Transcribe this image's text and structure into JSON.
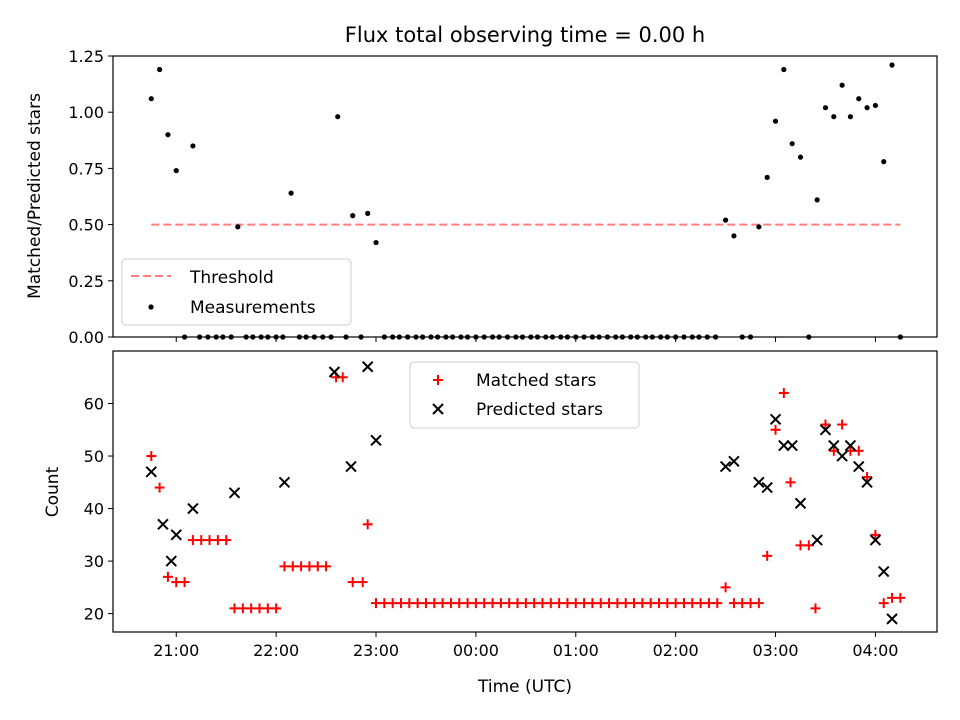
{
  "chart_data": [
    {
      "type": "scatter",
      "title": "Flux total observing time = 0.00 h",
      "xlabel": "",
      "ylabel": "Matched/Predicted stars",
      "x_axis": "time (UTC, hours after 20:00)",
      "xlim": [
        "20:22",
        "04:37"
      ],
      "ylim": [
        0,
        1.25
      ],
      "yticks": [
        "0.00",
        "0.25",
        "0.50",
        "0.75",
        "1.00",
        "1.25"
      ],
      "threshold": {
        "name": "Threshold",
        "y": 0.5,
        "x_from": "20:45",
        "x_to": "04:15",
        "color": "#ff7f7f",
        "style": "dashed"
      },
      "legend": {
        "placement": "lower-left",
        "entries": [
          "Threshold",
          "Measurements"
        ]
      },
      "series": [
        {
          "name": "Measurements",
          "color": "#000000",
          "points": [
            [
              "20:45",
              1.06
            ],
            [
              "20:50",
              1.19
            ],
            [
              "20:55",
              0.9
            ],
            [
              "21:00",
              0.74
            ],
            [
              "21:05",
              0.0
            ],
            [
              "21:10",
              0.85
            ],
            [
              "21:14",
              0.0
            ],
            [
              "21:19",
              0.0
            ],
            [
              "21:24",
              0.0
            ],
            [
              "21:28",
              0.0
            ],
            [
              "21:33",
              0.0
            ],
            [
              "21:37",
              0.49
            ],
            [
              "21:42",
              0.0
            ],
            [
              "21:46",
              0.0
            ],
            [
              "21:51",
              0.0
            ],
            [
              "21:55",
              0.0
            ],
            [
              "22:00",
              0.0
            ],
            [
              "22:04",
              0.0
            ],
            [
              "22:09",
              0.64
            ],
            [
              "22:14",
              0.0
            ],
            [
              "22:18",
              0.0
            ],
            [
              "22:23",
              0.0
            ],
            [
              "22:28",
              0.0
            ],
            [
              "22:33",
              0.0
            ],
            [
              "22:37",
              0.98
            ],
            [
              "22:42",
              0.0
            ],
            [
              "22:46",
              0.54
            ],
            [
              "22:51",
              0.0
            ],
            [
              "22:55",
              0.55
            ],
            [
              "23:00",
              0.42
            ],
            [
              "23:05",
              0.0
            ],
            [
              "23:10",
              0.0
            ],
            [
              "23:14",
              0.0
            ],
            [
              "23:19",
              0.0
            ],
            [
              "23:24",
              0.0
            ],
            [
              "23:28",
              0.0
            ],
            [
              "23:33",
              0.0
            ],
            [
              "23:37",
              0.0
            ],
            [
              "23:42",
              0.0
            ],
            [
              "23:46",
              0.0
            ],
            [
              "23:51",
              0.0
            ],
            [
              "23:55",
              0.0
            ],
            [
              "00:00",
              0.0
            ],
            [
              "00:05",
              0.0
            ],
            [
              "00:10",
              0.0
            ],
            [
              "00:14",
              0.0
            ],
            [
              "00:19",
              0.0
            ],
            [
              "00:24",
              0.0
            ],
            [
              "00:28",
              0.0
            ],
            [
              "00:33",
              0.0
            ],
            [
              "00:37",
              0.0
            ],
            [
              "00:42",
              0.0
            ],
            [
              "00:46",
              0.0
            ],
            [
              "00:51",
              0.0
            ],
            [
              "00:55",
              0.0
            ],
            [
              "01:00",
              0.0
            ],
            [
              "01:05",
              0.0
            ],
            [
              "01:10",
              0.0
            ],
            [
              "01:14",
              0.0
            ],
            [
              "01:19",
              0.0
            ],
            [
              "01:24",
              0.0
            ],
            [
              "01:28",
              0.0
            ],
            [
              "01:33",
              0.0
            ],
            [
              "01:37",
              0.0
            ],
            [
              "01:42",
              0.0
            ],
            [
              "01:46",
              0.0
            ],
            [
              "01:51",
              0.0
            ],
            [
              "01:55",
              0.0
            ],
            [
              "02:00",
              0.0
            ],
            [
              "02:05",
              0.0
            ],
            [
              "02:10",
              0.0
            ],
            [
              "02:14",
              0.0
            ],
            [
              "02:19",
              0.0
            ],
            [
              "02:24",
              0.0
            ],
            [
              "02:30",
              0.52
            ],
            [
              "02:35",
              0.45
            ],
            [
              "02:40",
              0.0
            ],
            [
              "02:45",
              0.0
            ],
            [
              "02:50",
              0.49
            ],
            [
              "02:55",
              0.71
            ],
            [
              "03:00",
              0.96
            ],
            [
              "03:05",
              1.19
            ],
            [
              "03:10",
              0.86
            ],
            [
              "03:15",
              0.8
            ],
            [
              "03:20",
              0.0
            ],
            [
              "03:25",
              0.61
            ],
            [
              "03:30",
              1.02
            ],
            [
              "03:35",
              0.98
            ],
            [
              "03:40",
              1.12
            ],
            [
              "03:45",
              0.98
            ],
            [
              "03:50",
              1.06
            ],
            [
              "03:55",
              1.02
            ],
            [
              "04:00",
              1.03
            ],
            [
              "04:05",
              0.78
            ],
            [
              "04:10",
              1.21
            ],
            [
              "04:15",
              0.0
            ]
          ]
        }
      ]
    },
    {
      "type": "scatter",
      "title": "",
      "xlabel": "Time (UTC)",
      "ylabel": "Count",
      "x_axis": "time (UTC, hours after 20:00)",
      "xlim": [
        "20:22",
        "04:37"
      ],
      "ylim": [
        16.5,
        70
      ],
      "xticks": [
        "21:00",
        "22:00",
        "23:00",
        "00:00",
        "01:00",
        "02:00",
        "03:00",
        "04:00"
      ],
      "yticks": [
        "20",
        "30",
        "40",
        "50",
        "60"
      ],
      "legend": {
        "placement": "upper-center",
        "entries": [
          "Matched stars",
          "Predicted stars"
        ]
      },
      "series": [
        {
          "name": "Matched stars",
          "color": "#ff0000",
          "marker": "plus",
          "points": [
            [
              "20:45",
              50
            ],
            [
              "20:50",
              44
            ],
            [
              "20:55",
              27
            ],
            [
              "21:00",
              26
            ],
            [
              "21:05",
              26
            ],
            [
              "21:10",
              34
            ],
            [
              "21:15",
              34
            ],
            [
              "21:20",
              34
            ],
            [
              "21:25",
              34
            ],
            [
              "21:30",
              34
            ],
            [
              "21:35",
              21
            ],
            [
              "21:40",
              21
            ],
            [
              "21:45",
              21
            ],
            [
              "21:50",
              21
            ],
            [
              "21:55",
              21
            ],
            [
              "22:00",
              21
            ],
            [
              "22:05",
              29
            ],
            [
              "22:10",
              29
            ],
            [
              "22:15",
              29
            ],
            [
              "22:20",
              29
            ],
            [
              "22:25",
              29
            ],
            [
              "22:30",
              29
            ],
            [
              "22:36",
              65
            ],
            [
              "22:40",
              65
            ],
            [
              "22:46",
              26
            ],
            [
              "22:52",
              26
            ],
            [
              "22:55",
              37
            ],
            [
              "23:00",
              22
            ],
            [
              "23:05",
              22
            ],
            [
              "23:10",
              22
            ],
            [
              "23:15",
              22
            ],
            [
              "23:20",
              22
            ],
            [
              "23:25",
              22
            ],
            [
              "23:30",
              22
            ],
            [
              "23:35",
              22
            ],
            [
              "23:40",
              22
            ],
            [
              "23:45",
              22
            ],
            [
              "23:50",
              22
            ],
            [
              "23:55",
              22
            ],
            [
              "00:00",
              22
            ],
            [
              "00:05",
              22
            ],
            [
              "00:10",
              22
            ],
            [
              "00:15",
              22
            ],
            [
              "00:20",
              22
            ],
            [
              "00:25",
              22
            ],
            [
              "00:30",
              22
            ],
            [
              "00:35",
              22
            ],
            [
              "00:40",
              22
            ],
            [
              "00:45",
              22
            ],
            [
              "00:50",
              22
            ],
            [
              "00:55",
              22
            ],
            [
              "01:00",
              22
            ],
            [
              "01:05",
              22
            ],
            [
              "01:10",
              22
            ],
            [
              "01:15",
              22
            ],
            [
              "01:20",
              22
            ],
            [
              "01:25",
              22
            ],
            [
              "01:30",
              22
            ],
            [
              "01:35",
              22
            ],
            [
              "01:40",
              22
            ],
            [
              "01:45",
              22
            ],
            [
              "01:50",
              22
            ],
            [
              "01:55",
              22
            ],
            [
              "02:00",
              22
            ],
            [
              "02:05",
              22
            ],
            [
              "02:10",
              22
            ],
            [
              "02:15",
              22
            ],
            [
              "02:20",
              22
            ],
            [
              "02:25",
              22
            ],
            [
              "02:30",
              25
            ],
            [
              "02:35",
              22
            ],
            [
              "02:40",
              22
            ],
            [
              "02:45",
              22
            ],
            [
              "02:50",
              22
            ],
            [
              "02:55",
              31
            ],
            [
              "03:00",
              55
            ],
            [
              "03:05",
              62
            ],
            [
              "03:09",
              45
            ],
            [
              "03:15",
              33
            ],
            [
              "03:20",
              33
            ],
            [
              "03:24",
              21
            ],
            [
              "03:30",
              56
            ],
            [
              "03:35",
              51
            ],
            [
              "03:40",
              56
            ],
            [
              "03:45",
              51
            ],
            [
              "03:50",
              51
            ],
            [
              "03:55",
              46
            ],
            [
              "04:00",
              35
            ],
            [
              "04:05",
              22
            ],
            [
              "04:10",
              23
            ],
            [
              "04:15",
              23
            ]
          ]
        },
        {
          "name": "Predicted stars",
          "color": "#000000",
          "marker": "x",
          "points": [
            [
              "20:45",
              47
            ],
            [
              "20:52",
              37
            ],
            [
              "20:57",
              30
            ],
            [
              "21:00",
              35
            ],
            [
              "21:10",
              40
            ],
            [
              "21:35",
              43
            ],
            [
              "22:05",
              45
            ],
            [
              "22:35",
              66
            ],
            [
              "22:45",
              48
            ],
            [
              "22:55",
              67
            ],
            [
              "23:00",
              53
            ],
            [
              "02:30",
              48
            ],
            [
              "02:35",
              49
            ],
            [
              "02:50",
              45
            ],
            [
              "02:55",
              44
            ],
            [
              "03:00",
              57
            ],
            [
              "03:05",
              52
            ],
            [
              "03:10",
              52
            ],
            [
              "03:15",
              41
            ],
            [
              "03:25",
              34
            ],
            [
              "03:30",
              55
            ],
            [
              "03:35",
              52
            ],
            [
              "03:40",
              50
            ],
            [
              "03:45",
              52
            ],
            [
              "03:50",
              48
            ],
            [
              "03:55",
              45
            ],
            [
              "04:00",
              34
            ],
            [
              "04:05",
              28
            ],
            [
              "04:10",
              19
            ]
          ]
        }
      ]
    }
  ]
}
